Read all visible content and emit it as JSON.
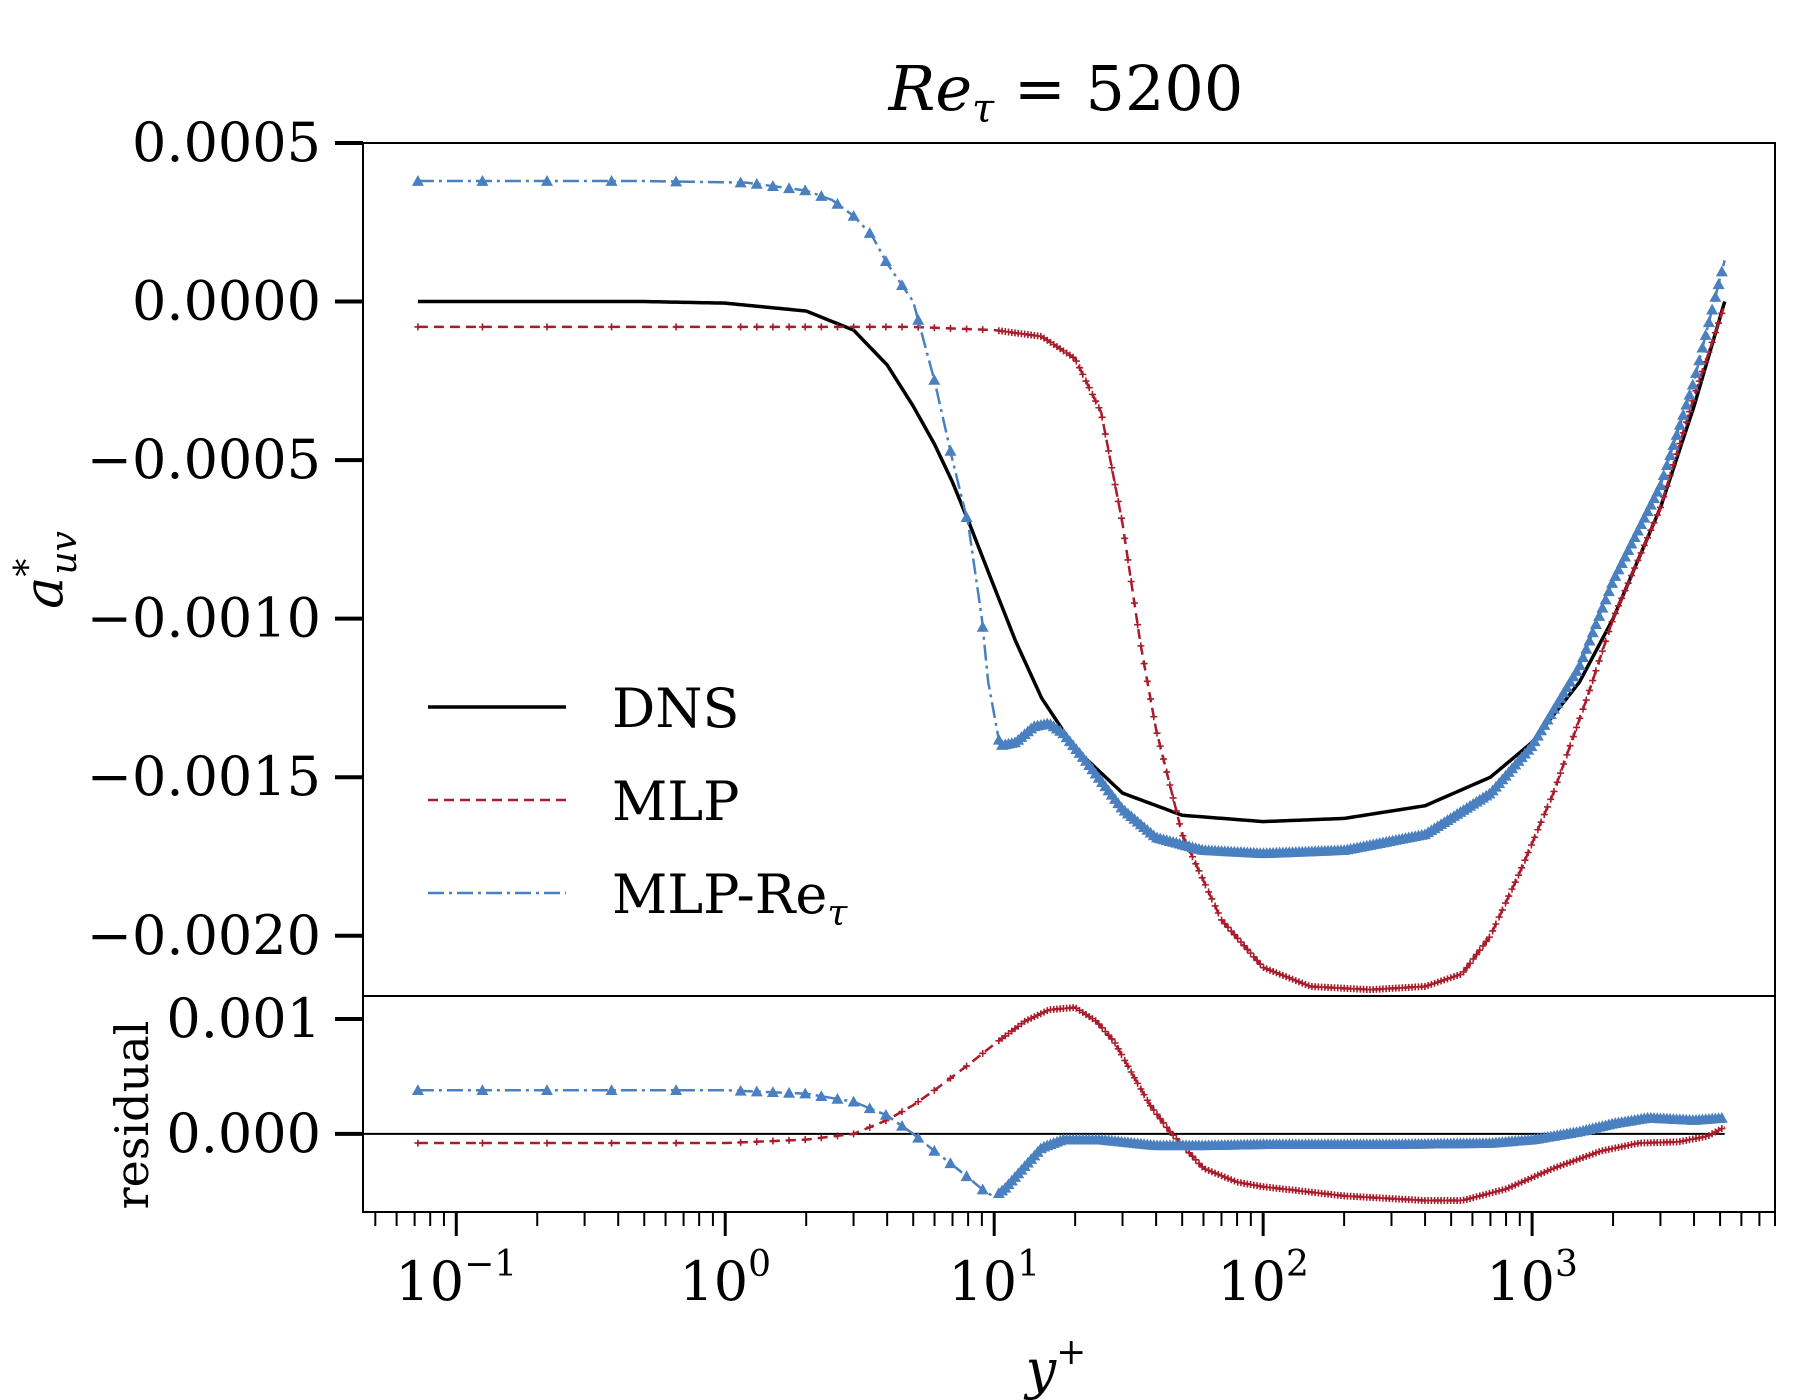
{
  "chart_data": {
    "type": "line",
    "title": {
      "main": "Re",
      "sub": "τ",
      "rest": " = 5200"
    },
    "xlabel": {
      "main": "y",
      "sup": "+"
    },
    "ylabel": {
      "main": "a",
      "sup": "*",
      "sub": "uv"
    },
    "residual_ylabel": "residual",
    "x_scale": "log",
    "xlim": [
      0.045,
      8000
    ],
    "x_tick_labels": [
      {
        "value": 0.1,
        "base": "10",
        "exp": "−1"
      },
      {
        "value": 1,
        "base": "10",
        "exp": "0"
      },
      {
        "value": 10,
        "base": "10",
        "exp": "1"
      },
      {
        "value": 100,
        "base": "10",
        "exp": "2"
      },
      {
        "value": 1000,
        "base": "10",
        "exp": "3"
      }
    ],
    "main_panel": {
      "ylim": [
        -0.00219,
        0.0005
      ],
      "y_ticks": [
        {
          "value": 0.0005,
          "label": "0.0005"
        },
        {
          "value": 0.0,
          "label": "0.0000"
        },
        {
          "value": -0.0005,
          "label": "−0.0005"
        },
        {
          "value": -0.001,
          "label": "−0.0010"
        },
        {
          "value": -0.0015,
          "label": "−0.0015"
        },
        {
          "value": -0.002,
          "label": "−0.0020"
        }
      ]
    },
    "residual_panel": {
      "ylim": [
        -0.00068,
        0.0012
      ],
      "y_ticks": [
        {
          "value": 0.001,
          "label": "0.001"
        },
        {
          "value": 0.0,
          "label": "0.000"
        }
      ],
      "zero_line": true
    },
    "legend": {
      "position": "center-left",
      "entries": [
        {
          "name": "DNS",
          "sub": ""
        },
        {
          "name": "MLP",
          "sub": ""
        },
        {
          "name": "MLP-Re",
          "sub": "τ"
        }
      ]
    },
    "series": [
      {
        "name": "DNS",
        "color": "#000000",
        "style": "solid",
        "marker": "none",
        "points": [
          [
            0.072,
            0.0
          ],
          [
            0.5,
            0.0
          ],
          [
            1,
            -5e-06
          ],
          [
            2,
            -3e-05
          ],
          [
            3,
            -9e-05
          ],
          [
            4,
            -0.0002
          ],
          [
            5,
            -0.00033
          ],
          [
            6,
            -0.00045
          ],
          [
            7,
            -0.00057
          ],
          [
            8,
            -0.00069
          ],
          [
            10,
            -0.0009
          ],
          [
            12,
            -0.00107
          ],
          [
            15,
            -0.00125
          ],
          [
            20,
            -0.00141
          ],
          [
            30,
            -0.00155
          ],
          [
            50,
            -0.00162
          ],
          [
            100,
            -0.00164
          ],
          [
            200,
            -0.00163
          ],
          [
            400,
            -0.00159
          ],
          [
            700,
            -0.0015
          ],
          [
            1000,
            -0.00139
          ],
          [
            1500,
            -0.0012
          ],
          [
            2000,
            -0.001
          ],
          [
            3000,
            -0.00065
          ],
          [
            4000,
            -0.00033
          ],
          [
            5200,
            0.0
          ]
        ]
      },
      {
        "name": "MLP",
        "color": "#a81c2c",
        "style": "dashed",
        "marker": "plus",
        "points": [
          [
            0.072,
            -8e-05
          ],
          [
            1,
            -8e-05
          ],
          [
            5,
            -8e-05
          ],
          [
            10,
            -9e-05
          ],
          [
            15,
            -0.00011
          ],
          [
            20,
            -0.00018
          ],
          [
            25,
            -0.00035
          ],
          [
            30,
            -0.0007
          ],
          [
            35,
            -0.00108
          ],
          [
            40,
            -0.00135
          ],
          [
            50,
            -0.00168
          ],
          [
            70,
            -0.00195
          ],
          [
            100,
            -0.0021
          ],
          [
            150,
            -0.00216
          ],
          [
            250,
            -0.00217
          ],
          [
            400,
            -0.00216
          ],
          [
            550,
            -0.00212
          ],
          [
            700,
            -0.002
          ],
          [
            900,
            -0.0018
          ],
          [
            1200,
            -0.00155
          ],
          [
            1600,
            -0.00125
          ],
          [
            2000,
            -0.001
          ],
          [
            3000,
            -0.00065
          ],
          [
            4000,
            -0.0003
          ],
          [
            5200,
            -1e-05
          ]
        ]
      },
      {
        "name": "MLP-Re_tau",
        "color": "#4a80c0",
        "style": "dashdot",
        "marker": "triangle",
        "points": [
          [
            0.072,
            0.00038
          ],
          [
            0.5,
            0.00038
          ],
          [
            1.2,
            0.000375
          ],
          [
            2,
            0.00035
          ],
          [
            2.5,
            0.00032
          ],
          [
            3,
            0.00027
          ],
          [
            3.5,
            0.00021
          ],
          [
            4,
            0.00012
          ],
          [
            5,
            0.0
          ],
          [
            6,
            -0.00025
          ],
          [
            7,
            -0.0005
          ],
          [
            8,
            -0.0007
          ],
          [
            9,
            -0.001
          ],
          [
            9.5,
            -0.0012
          ],
          [
            10.5,
            -0.0014
          ],
          [
            12,
            -0.00139
          ],
          [
            14,
            -0.00134
          ],
          [
            16,
            -0.00133
          ],
          [
            18,
            -0.00136
          ],
          [
            22,
            -0.00145
          ],
          [
            30,
            -0.0016
          ],
          [
            40,
            -0.00169
          ],
          [
            60,
            -0.00173
          ],
          [
            100,
            -0.00174
          ],
          [
            200,
            -0.00173
          ],
          [
            400,
            -0.00168
          ],
          [
            700,
            -0.00155
          ],
          [
            1000,
            -0.0014
          ],
          [
            1500,
            -0.00115
          ],
          [
            2000,
            -0.00088
          ],
          [
            3000,
            -0.00058
          ],
          [
            4000,
            -0.00025
          ],
          [
            5200,
            0.00013
          ]
        ]
      }
    ],
    "residual_series": [
      {
        "name": "MLP",
        "color": "#a81c2c",
        "style": "dashed",
        "marker": "plus",
        "points": [
          [
            0.072,
            -8e-05
          ],
          [
            1,
            -8e-05
          ],
          [
            2,
            -5e-05
          ],
          [
            3,
            0.0
          ],
          [
            4,
            0.00012
          ],
          [
            5,
            0.00025
          ],
          [
            6,
            0.00038
          ],
          [
            8,
            0.0006
          ],
          [
            10,
            0.00078
          ],
          [
            13,
            0.00098
          ],
          [
            16,
            0.00108
          ],
          [
            20,
            0.0011
          ],
          [
            24,
            0.00098
          ],
          [
            28,
            0.0008
          ],
          [
            33,
            0.0005
          ],
          [
            38,
            0.00025
          ],
          [
            45,
            2e-05
          ],
          [
            60,
            -0.0003
          ],
          [
            80,
            -0.00042
          ],
          [
            100,
            -0.00046
          ],
          [
            200,
            -0.00054
          ],
          [
            400,
            -0.00058
          ],
          [
            550,
            -0.00058
          ],
          [
            800,
            -0.00048
          ],
          [
            1200,
            -0.0003
          ],
          [
            1800,
            -0.00015
          ],
          [
            2500,
            -8e-05
          ],
          [
            3500,
            -7e-05
          ],
          [
            4500,
            -2e-05
          ],
          [
            5200,
            6e-05
          ]
        ]
      },
      {
        "name": "MLP-Re_tau",
        "color": "#4a80c0",
        "style": "dashdot",
        "marker": "triangle",
        "points": [
          [
            0.072,
            0.00038
          ],
          [
            1,
            0.00038
          ],
          [
            2,
            0.00035
          ],
          [
            3,
            0.00028
          ],
          [
            4,
            0.00016
          ],
          [
            5,
            0.0
          ],
          [
            6,
            -0.00015
          ],
          [
            7,
            -0.00027
          ],
          [
            8,
            -0.00038
          ],
          [
            9,
            -0.00048
          ],
          [
            10,
            -0.00055
          ],
          [
            11,
            -0.00047
          ],
          [
            13,
            -0.00028
          ],
          [
            15,
            -0.00012
          ],
          [
            18,
            -5e-05
          ],
          [
            25,
            -5e-05
          ],
          [
            40,
            -0.0001
          ],
          [
            60,
            -0.0001
          ],
          [
            100,
            -9e-05
          ],
          [
            300,
            -9e-05
          ],
          [
            700,
            -8e-05
          ],
          [
            1000,
            -5e-05
          ],
          [
            1500,
            2e-05
          ],
          [
            2000,
            9e-05
          ],
          [
            2700,
            0.00014
          ],
          [
            3300,
            0.00013
          ],
          [
            4000,
            0.00012
          ],
          [
            5200,
            0.00014
          ]
        ]
      }
    ]
  }
}
